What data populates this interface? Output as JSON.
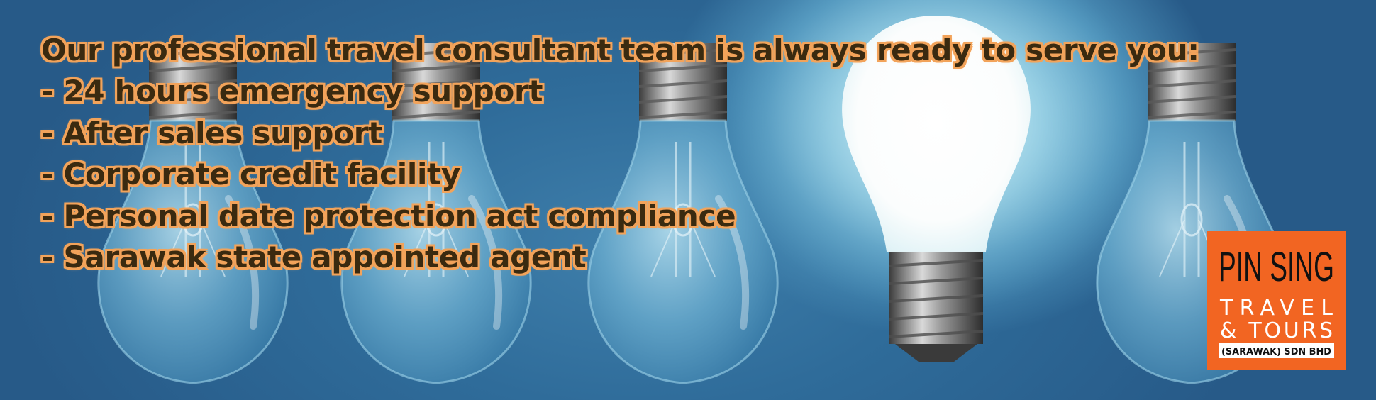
{
  "banner": {
    "headline": "Our professional travel consultant team is always ready to serve you:",
    "features": [
      "- 24 hours emergency support",
      "- After sales support",
      "- Corporate credit facility",
      "- Personal date protection act compliance",
      "- Sarawak state appointed agent"
    ]
  },
  "logo": {
    "line1": "PIN SING",
    "line2": "TRAVEL",
    "line3": "& TOURS",
    "line4": "(SARAWAK) SDN BHD",
    "brand_color": "#f26522"
  },
  "colors": {
    "text": "#3a2a10",
    "text_outline": "#f2a35a",
    "background": "#2f6c9a"
  }
}
